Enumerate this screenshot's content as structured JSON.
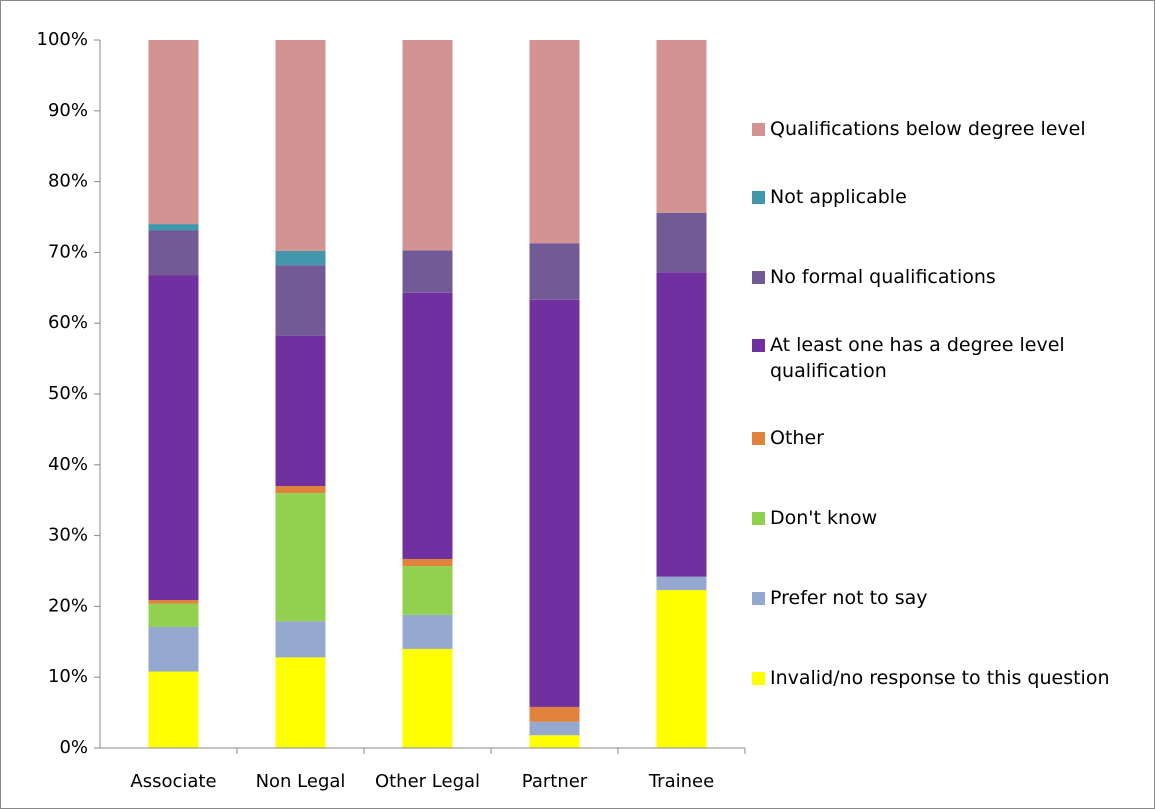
{
  "chart_data": {
    "type": "stacked_bar",
    "categories": [
      "Associate",
      "Non Legal",
      "Other Legal",
      "Partner",
      "Trainee"
    ],
    "series": [
      {
        "name": "Invalid/no response to this question",
        "color": "#ffff00",
        "values": [
          10.8,
          12.8,
          14.0,
          1.8,
          22.3
        ]
      },
      {
        "name": "Prefer not to say",
        "color": "#95a9d0",
        "values": [
          6.3,
          5.1,
          4.8,
          1.9,
          1.9
        ]
      },
      {
        "name": "Don't know",
        "color": "#92d050",
        "values": [
          3.3,
          18.1,
          6.9,
          0,
          0
        ]
      },
      {
        "name": "Other",
        "color": "#e0823c",
        "values": [
          0.5,
          1.0,
          1.0,
          2.1,
          0
        ]
      },
      {
        "name": "At least one has a degree level qualification",
        "color": "#7030a0",
        "values": [
          45.9,
          21.2,
          37.6,
          57.5,
          43.0
        ]
      },
      {
        "name": "No formal qualifications",
        "color": "#725a96",
        "values": [
          6.3,
          10.0,
          6.0,
          8.0,
          8.4
        ]
      },
      {
        "name": "Not applicable",
        "color": "#4198ab",
        "values": [
          0.9,
          2.0,
          0,
          0,
          0
        ]
      },
      {
        "name": "Qualifications below degree level",
        "color": "#d39392",
        "values": [
          26.0,
          29.8,
          29.7,
          28.7,
          24.4
        ]
      }
    ],
    "ylim": [
      0,
      100
    ],
    "yticks": [
      {
        "value": 0,
        "label": "0%"
      },
      {
        "value": 10,
        "label": "10%"
      },
      {
        "value": 20,
        "label": "20%"
      },
      {
        "value": 30,
        "label": "30%"
      },
      {
        "value": 40,
        "label": "40%"
      },
      {
        "value": 50,
        "label": "50%"
      },
      {
        "value": 60,
        "label": "60%"
      },
      {
        "value": 70,
        "label": "70%"
      },
      {
        "value": 80,
        "label": "80%"
      },
      {
        "value": 90,
        "label": "90%"
      },
      {
        "value": 100,
        "label": "100%"
      }
    ],
    "legend": "right"
  }
}
